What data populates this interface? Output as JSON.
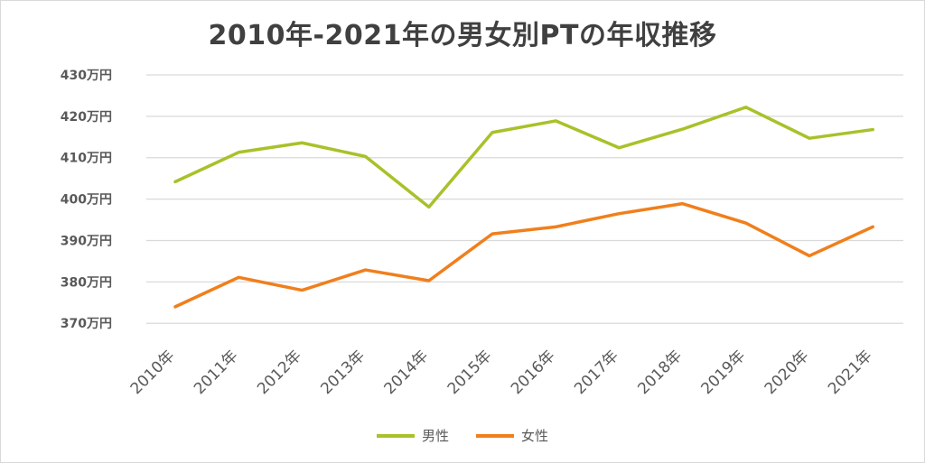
{
  "chart_data": {
    "type": "line",
    "title": "2010年-2021年の男女別PTの年収推移",
    "xlabel": "",
    "ylabel": "",
    "categories": [
      "2010年",
      "2011年",
      "2012年",
      "2013年",
      "2014年",
      "2015年",
      "2016年",
      "2017年",
      "2018年",
      "2019年",
      "2020年",
      "2021年"
    ],
    "y_ticks": [
      {
        "value": 370,
        "label": "370万円"
      },
      {
        "value": 380,
        "label": "380万円"
      },
      {
        "value": 390,
        "label": "390万円"
      },
      {
        "value": 400,
        "label": "400万円"
      },
      {
        "value": 410,
        "label": "410万円"
      },
      {
        "value": 420,
        "label": "420万円"
      },
      {
        "value": 430,
        "label": "430万円"
      }
    ],
    "ylim": [
      367,
      430
    ],
    "grid": true,
    "legend_position": "bottom",
    "series": [
      {
        "name": "男性",
        "color": "#a9c12a",
        "values": [
          404.2,
          411.3,
          413.6,
          410.3,
          398.1,
          416.1,
          418.9,
          412.4,
          416.9,
          422.2,
          414.7,
          416.8
        ]
      },
      {
        "name": "女性",
        "color": "#f07f1c",
        "values": [
          374.0,
          381.1,
          378.0,
          382.9,
          380.3,
          391.6,
          393.3,
          396.5,
          398.9,
          394.2,
          386.3,
          393.3
        ]
      }
    ]
  }
}
